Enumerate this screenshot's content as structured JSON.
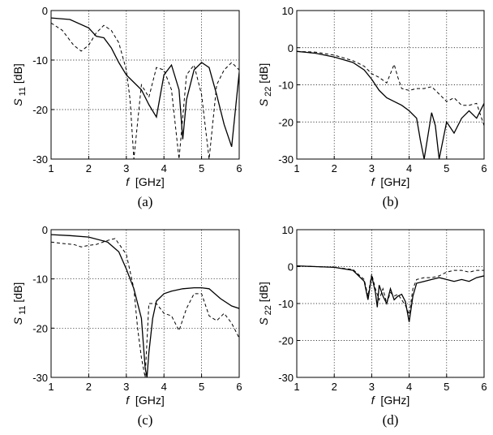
{
  "chart_data": [
    {
      "type": "line",
      "panel": "a",
      "caption": "(a)",
      "xlabel": "f [GHz]",
      "ylabel": "S11 [dB]",
      "xlim": [
        1,
        6
      ],
      "ylim": [
        -30,
        0
      ],
      "xticks": [
        1,
        2,
        3,
        4,
        5,
        6
      ],
      "yticks": [
        0,
        -10,
        -20,
        -30
      ],
      "grid": true,
      "series": [
        {
          "style": "solid",
          "x": [
            1,
            1.5,
            2,
            2.2,
            2.4,
            2.6,
            2.8,
            3.0,
            3.2,
            3.4,
            3.6,
            3.8,
            4.0,
            4.2,
            4.4,
            4.5,
            4.6,
            4.8,
            5.0,
            5.2,
            5.4,
            5.6,
            5.8,
            6.0
          ],
          "y": [
            -1.5,
            -1.8,
            -3.5,
            -5.2,
            -5.5,
            -7.5,
            -10.5,
            -13.0,
            -14.5,
            -16.0,
            -19.0,
            -21.5,
            -13.0,
            -11.0,
            -16.0,
            -26.0,
            -18.0,
            -12.0,
            -10.5,
            -11.5,
            -17.0,
            -23.0,
            -27.5,
            -12.5
          ]
        },
        {
          "style": "dashed",
          "x": [
            1,
            1.3,
            1.6,
            1.8,
            2.0,
            2.2,
            2.4,
            2.6,
            2.8,
            3.0,
            3.1,
            3.2,
            3.4,
            3.6,
            3.8,
            4.0,
            4.2,
            4.4,
            4.6,
            4.8,
            5.0,
            5.2,
            5.4,
            5.6,
            5.8,
            6.0
          ],
          "y": [
            -2.5,
            -4.0,
            -7.0,
            -8.2,
            -7.0,
            -4.5,
            -3.0,
            -4.0,
            -6.5,
            -12.0,
            -18.0,
            -30.0,
            -15.0,
            -17.5,
            -11.5,
            -12.0,
            -16.0,
            -30.0,
            -13.0,
            -11.0,
            -17.0,
            -30.0,
            -15.0,
            -12.0,
            -10.5,
            -12.0
          ]
        }
      ]
    },
    {
      "type": "line",
      "panel": "b",
      "caption": "(b)",
      "xlabel": "f [GHz]",
      "ylabel": "S22 [dB]",
      "xlim": [
        1,
        6
      ],
      "ylim": [
        -30,
        10
      ],
      "xticks": [
        1,
        2,
        3,
        4,
        5,
        6
      ],
      "yticks": [
        10,
        0,
        -10,
        -20,
        -30
      ],
      "grid": true,
      "series": [
        {
          "style": "solid",
          "x": [
            1,
            1.5,
            2,
            2.5,
            2.8,
            3.0,
            3.2,
            3.4,
            3.6,
            3.8,
            4.0,
            4.2,
            4.3,
            4.4,
            4.6,
            4.7,
            4.8,
            5.0,
            5.2,
            5.4,
            5.6,
            5.8,
            6.0
          ],
          "y": [
            -1.0,
            -1.5,
            -2.5,
            -4.0,
            -6.0,
            -8.5,
            -11.5,
            -13.5,
            -14.5,
            -15.5,
            -17.0,
            -19.0,
            -25.0,
            -30.0,
            -17.5,
            -21.0,
            -30.0,
            -20.0,
            -23.0,
            -19.0,
            -17.0,
            -19.0,
            -15.0
          ]
        },
        {
          "style": "dashed",
          "x": [
            1,
            1.5,
            2,
            2.5,
            2.8,
            3.0,
            3.2,
            3.4,
            3.5,
            3.6,
            3.7,
            3.8,
            4.0,
            4.2,
            4.4,
            4.6,
            4.8,
            5.0,
            5.2,
            5.4,
            5.6,
            5.8,
            6.0
          ],
          "y": [
            -1.0,
            -1.2,
            -2.0,
            -3.5,
            -5.0,
            -7.0,
            -8.0,
            -9.5,
            -7.0,
            -4.5,
            -8.0,
            -11.0,
            -11.5,
            -11.0,
            -11.0,
            -10.5,
            -12.5,
            -14.5,
            -13.5,
            -15.5,
            -15.5,
            -15.0,
            -21.0
          ]
        }
      ]
    },
    {
      "type": "line",
      "panel": "c",
      "caption": "(c)",
      "xlabel": "f [GHz]",
      "ylabel": "S11 [dB]",
      "xlim": [
        1,
        6
      ],
      "ylim": [
        -30,
        0
      ],
      "xticks": [
        1,
        2,
        3,
        4,
        5,
        6
      ],
      "yticks": [
        0,
        -10,
        -20,
        -30
      ],
      "grid": true,
      "series": [
        {
          "style": "solid",
          "x": [
            1,
            1.5,
            2,
            2.5,
            2.8,
            3.0,
            3.2,
            3.4,
            3.5,
            3.55,
            3.6,
            3.7,
            3.8,
            4.0,
            4.2,
            4.5,
            4.8,
            5.0,
            5.2,
            5.5,
            5.8,
            6.0
          ],
          "y": [
            -1.0,
            -1.2,
            -1.5,
            -2.5,
            -4.5,
            -8.0,
            -12.0,
            -18.0,
            -28.0,
            -30.0,
            -25.0,
            -18.0,
            -14.5,
            -13.0,
            -12.5,
            -12.0,
            -11.8,
            -11.8,
            -12.0,
            -14.0,
            -15.5,
            -16.0
          ]
        },
        {
          "style": "dashed",
          "x": [
            1,
            1.3,
            1.6,
            1.8,
            2.0,
            2.2,
            2.5,
            2.7,
            3.0,
            3.2,
            3.3,
            3.4,
            3.5,
            3.6,
            3.8,
            4.0,
            4.2,
            4.4,
            4.6,
            4.8,
            5.0,
            5.2,
            5.4,
            5.6,
            5.8,
            6.0
          ],
          "y": [
            -2.5,
            -2.8,
            -3.0,
            -3.5,
            -3.2,
            -3.0,
            -2.2,
            -1.8,
            -5.0,
            -12.0,
            -20.0,
            -26.0,
            -30.0,
            -15.0,
            -15.0,
            -17.0,
            -17.5,
            -20.5,
            -16.0,
            -13.0,
            -13.0,
            -17.5,
            -18.5,
            -17.0,
            -19.0,
            -22.0
          ]
        }
      ]
    },
    {
      "type": "line",
      "panel": "d",
      "caption": "(d)",
      "xlabel": "f [GHz]",
      "ylabel": "S22 [dB]",
      "xlim": [
        1,
        6
      ],
      "ylim": [
        -30,
        10
      ],
      "xticks": [
        1,
        2,
        3,
        4,
        5,
        6
      ],
      "yticks": [
        10,
        0,
        -10,
        -20,
        -30
      ],
      "grid": true,
      "series": [
        {
          "style": "solid",
          "x": [
            1,
            1.5,
            2,
            2.5,
            2.8,
            2.9,
            3.0,
            3.1,
            3.15,
            3.2,
            3.3,
            3.4,
            3.5,
            3.6,
            3.7,
            3.8,
            3.9,
            4.0,
            4.1,
            4.2,
            4.4,
            4.6,
            4.8,
            5.0,
            5.2,
            5.4,
            5.6,
            5.8,
            6.0
          ],
          "y": [
            0.2,
            0.0,
            -0.2,
            -1.0,
            -4.0,
            -9.0,
            -2.5,
            -7.0,
            -11.0,
            -5.0,
            -8.0,
            -10.0,
            -6.0,
            -9.0,
            -8.0,
            -7.5,
            -9.5,
            -15.0,
            -8.0,
            -4.5,
            -4.0,
            -3.5,
            -3.0,
            -3.5,
            -4.0,
            -3.5,
            -4.0,
            -3.0,
            -2.5
          ]
        },
        {
          "style": "dashed",
          "x": [
            1,
            1.5,
            2,
            2.5,
            2.8,
            2.9,
            3.0,
            3.1,
            3.2,
            3.3,
            3.4,
            3.5,
            3.6,
            3.7,
            3.8,
            3.9,
            4.0,
            4.1,
            4.2,
            4.4,
            4.6,
            4.8,
            5.0,
            5.2,
            5.4,
            5.6,
            5.8,
            6.0
          ],
          "y": [
            0.2,
            0.0,
            -0.2,
            -0.8,
            -3.5,
            -8.0,
            -2.0,
            -6.0,
            -9.0,
            -6.0,
            -10.0,
            -7.0,
            -8.0,
            -7.5,
            -9.0,
            -10.5,
            -13.0,
            -6.0,
            -3.5,
            -3.0,
            -3.0,
            -2.5,
            -1.5,
            -1.0,
            -1.0,
            -1.5,
            -1.0,
            -1.0
          ]
        }
      ]
    }
  ]
}
